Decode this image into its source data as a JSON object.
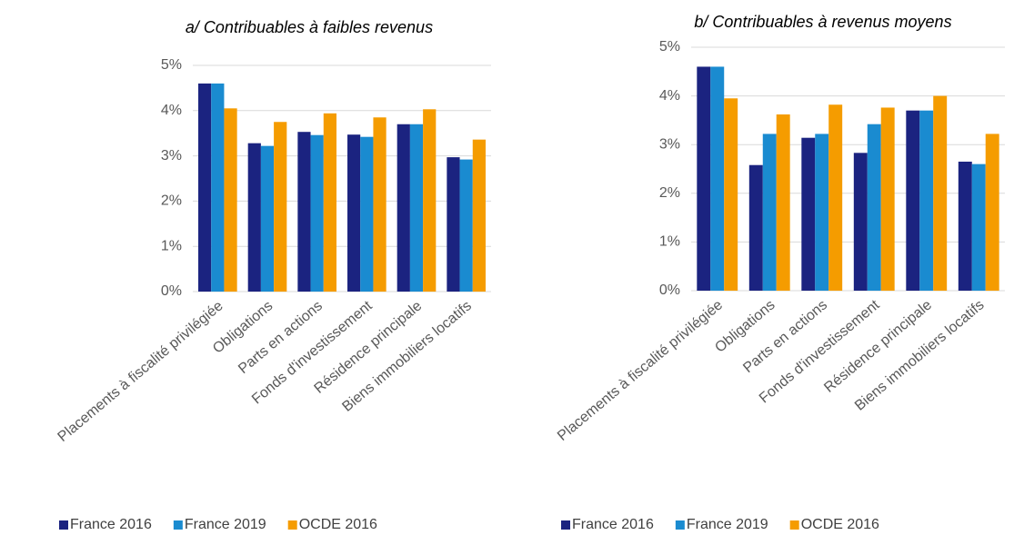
{
  "chart_data": [
    {
      "type": "bar",
      "title": "a/ Contribuables à faibles revenus",
      "categories": [
        "Placements à fiscalité privilégiée",
        "Obligations",
        "Parts en actions",
        "Fonds d'investissement",
        "Résidence principale",
        "Biens immobiliers locatifs"
      ],
      "series": [
        {
          "name": "France 2016",
          "color": "#1b2380",
          "values": [
            4.6,
            3.28,
            3.53,
            3.47,
            3.7,
            2.97
          ]
        },
        {
          "name": "France 2019",
          "color": "#1a8bd0",
          "values": [
            4.6,
            3.22,
            3.46,
            3.42,
            3.7,
            2.92
          ]
        },
        {
          "name": "OCDE 2016",
          "color": "#f59c00",
          "values": [
            4.05,
            3.75,
            3.94,
            3.85,
            4.03,
            3.36
          ]
        }
      ],
      "ylim": [
        0,
        5
      ],
      "yticks": [
        {
          "value": 0,
          "label": "0%"
        },
        {
          "value": 1,
          "label": "1%"
        },
        {
          "value": 2,
          "label": "2%"
        },
        {
          "value": 3,
          "label": "3%"
        },
        {
          "value": 4,
          "label": "4%"
        },
        {
          "value": 5,
          "label": "5%"
        }
      ],
      "grid": true
    },
    {
      "type": "bar",
      "title": "b/ Contribuables à revenus moyens",
      "categories": [
        "Placements à fiscalité privilégiée",
        "Obligations",
        "Parts en actions",
        "Fonds d'investissement",
        "Résidence principale",
        "Biens immobiliers locatifs"
      ],
      "series": [
        {
          "name": "France 2016",
          "color": "#1b2380",
          "values": [
            4.6,
            2.58,
            3.14,
            2.83,
            3.7,
            2.65
          ]
        },
        {
          "name": "France 2019",
          "color": "#1a8bd0",
          "values": [
            4.6,
            3.22,
            3.22,
            3.42,
            3.7,
            2.6
          ]
        },
        {
          "name": "OCDE 2016",
          "color": "#f59c00",
          "values": [
            3.95,
            3.62,
            3.82,
            3.76,
            4.0,
            3.22
          ]
        }
      ],
      "ylim": [
        0,
        5
      ],
      "yticks": [
        {
          "value": 0,
          "label": "0%"
        },
        {
          "value": 1,
          "label": "1%"
        },
        {
          "value": 2,
          "label": "2%"
        },
        {
          "value": 3,
          "label": "3%"
        },
        {
          "value": 4,
          "label": "4%"
        },
        {
          "value": 5,
          "label": "5%"
        }
      ],
      "grid": true
    }
  ]
}
